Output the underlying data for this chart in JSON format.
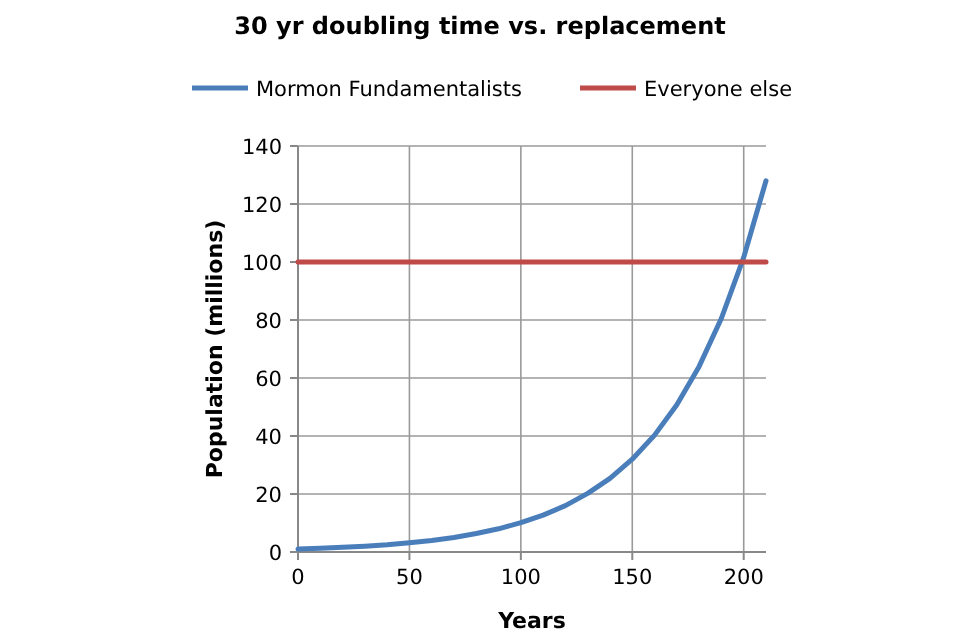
{
  "chart_data": {
    "type": "line",
    "title": "30 yr doubling time vs. replacement",
    "xlabel": "Years",
    "ylabel": "Population (millions)",
    "xlim": [
      0,
      210
    ],
    "xticks": [
      0,
      50,
      100,
      150,
      200
    ],
    "ylim": [
      0,
      140
    ],
    "yticks": [
      0,
      20,
      40,
      60,
      80,
      100,
      120,
      140
    ],
    "grid": true,
    "legend": "top",
    "marker": "none",
    "line_style": "solid",
    "series": [
      {
        "name": "Mormon Fundamentalists",
        "color": "#4a7ebb",
        "x": [
          0,
          10,
          20,
          30,
          40,
          50,
          60,
          70,
          80,
          90,
          100,
          110,
          120,
          130,
          140,
          150,
          160,
          170,
          180,
          190,
          200,
          210
        ],
        "values": [
          1,
          1.3,
          1.6,
          2,
          2.5,
          3.2,
          4,
          5,
          6.4,
          8,
          10.1,
          12.7,
          16,
          20.2,
          25.4,
          32,
          40.3,
          50.8,
          64,
          80.6,
          101.6,
          128
        ]
      },
      {
        "name": "Everyone else",
        "color": "#be4b48",
        "x": [
          0,
          210
        ],
        "values": [
          100,
          100
        ]
      }
    ]
  }
}
